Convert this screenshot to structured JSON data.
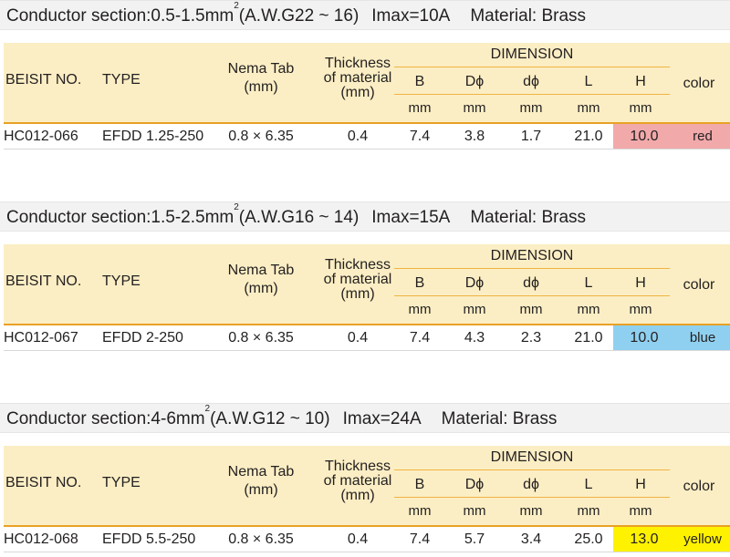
{
  "headers": {
    "part_no": "BEISIT NO.",
    "type": "TYPE",
    "nema_tab_1": "Nema Tab",
    "nema_tab_2": "(mm)",
    "thickness_1": "Thickness",
    "thickness_2": "of material",
    "thickness_3": "(mm)",
    "dimension": "DIMENSION",
    "b": "B",
    "d_phi": "Dϕ",
    "small_d_phi": "dϕ",
    "l": "L",
    "h": "H",
    "color": "color",
    "unit": "mm"
  },
  "sections": [
    {
      "conductor_prefix": "Conductor section:0.5-1.5mm",
      "conductor_sup": "2",
      "conductor_awg": "(A.W.G22 ~ 16)",
      "imax": "Imax=10A",
      "material": "Material: Brass",
      "row": {
        "part_no": "HC012-066",
        "type": "EFDD 1.25-250",
        "nema_tab": "0.8 × 6.35",
        "thickness": "0.4",
        "b": "7.4",
        "d_phi": "3.8",
        "small_d_phi": "1.7",
        "l": "21.0",
        "h": "10.0",
        "color": "red",
        "swatch": "#f2a9aa"
      }
    },
    {
      "conductor_prefix": "Conductor section:1.5-2.5mm",
      "conductor_sup": "2",
      "conductor_awg": "(A.W.G16 ~ 14)",
      "imax": "Imax=15A",
      "material": "Material: Brass",
      "row": {
        "part_no": "HC012-067",
        "type": "EFDD 2-250",
        "nema_tab": "0.8 × 6.35",
        "thickness": "0.4",
        "b": "7.4",
        "d_phi": "4.3",
        "small_d_phi": "2.3",
        "l": "21.0",
        "h": "10.0",
        "color": "blue",
        "swatch": "#8fd0f0"
      }
    },
    {
      "conductor_prefix": "Conductor section:4-6mm",
      "conductor_sup": "2",
      "conductor_awg": "(A.W.G12 ~ 10)",
      "imax": "Imax=24A",
      "material": "Material: Brass",
      "row": {
        "part_no": "HC012-068",
        "type": "EFDD 5.5-250",
        "nema_tab": "0.8 × 6.35",
        "thickness": "0.4",
        "b": "7.4",
        "d_phi": "5.7",
        "small_d_phi": "3.4",
        "l": "25.0",
        "h": "13.0",
        "color": "yellow",
        "swatch": "#fff200"
      }
    }
  ],
  "theme": {
    "header_bg": "#fbeec4",
    "accent_line": "#e9a125",
    "conductor_bg": "#f2f2f2"
  }
}
